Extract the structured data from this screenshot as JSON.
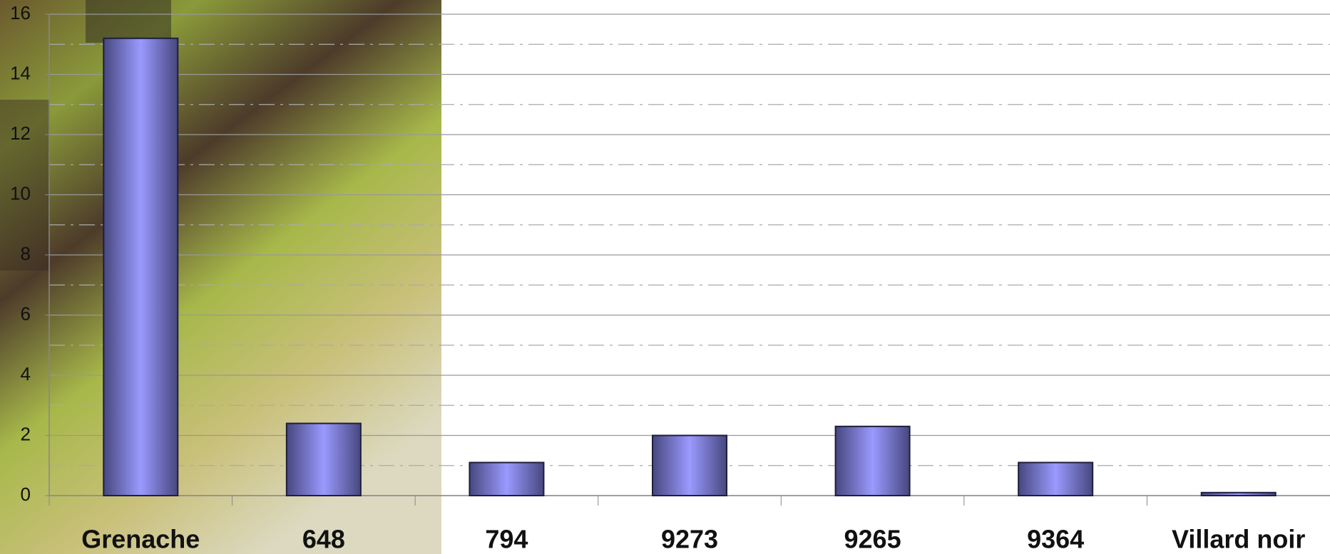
{
  "chart_data": {
    "type": "bar",
    "categories": [
      "Grenache",
      "648",
      "794",
      "9273",
      "9265",
      "9364",
      "Villard noir"
    ],
    "values": [
      15.2,
      2.4,
      1.1,
      2.0,
      2.3,
      1.1,
      0.1
    ],
    "color": "#6666bb",
    "ylim": [
      0,
      16
    ],
    "yticks": [
      0,
      2,
      4,
      6,
      8,
      10,
      12,
      14,
      16
    ],
    "grid": true
  }
}
